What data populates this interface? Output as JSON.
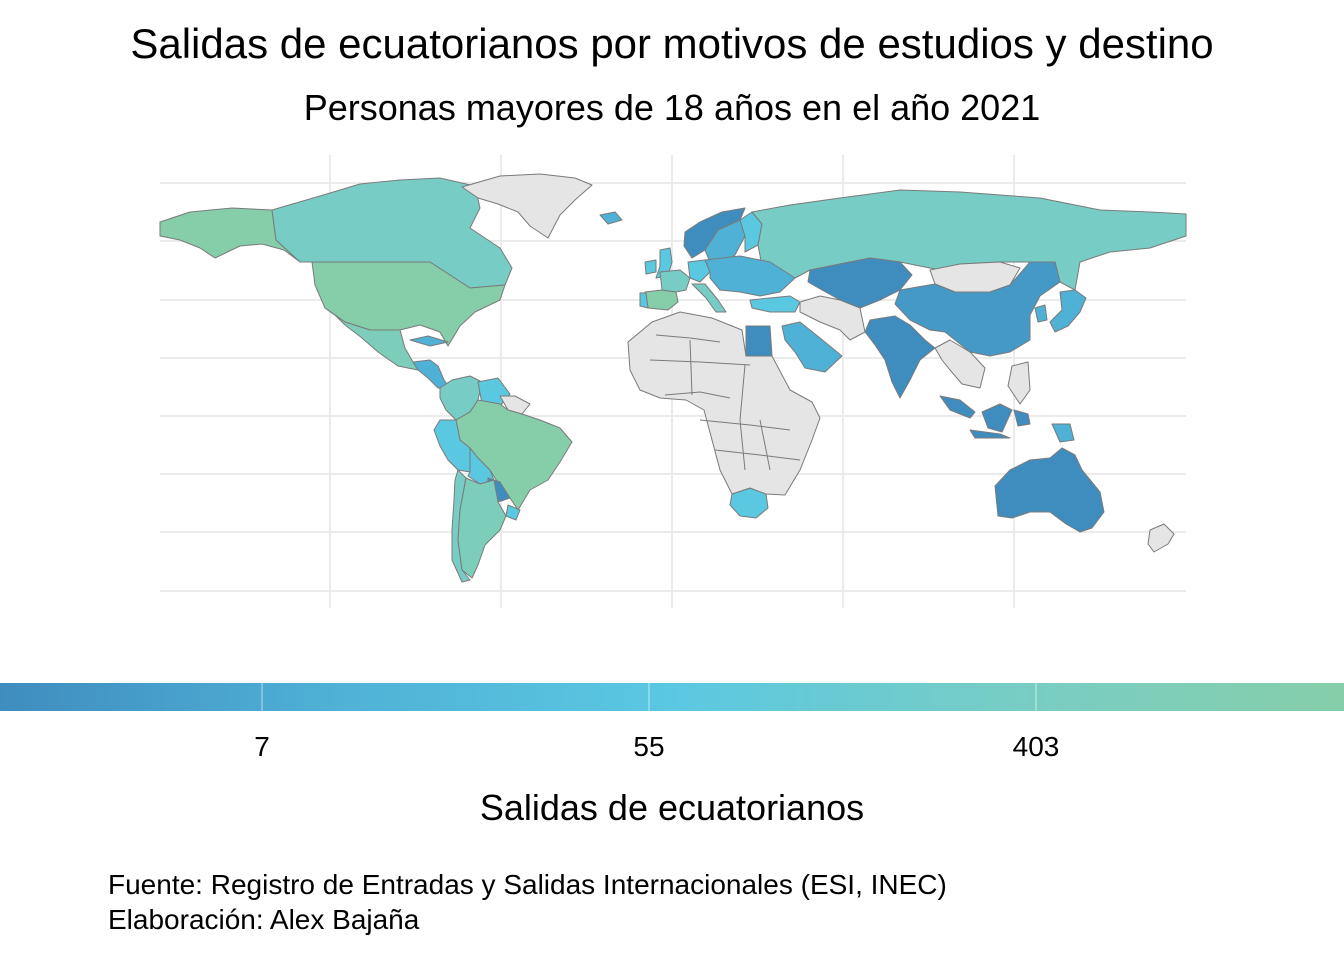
{
  "map": {
    "title": "Salidas de ecuatorianos por motivos de estudios y destino",
    "subtitle": "Personas mayores de 18 años en el año 2021",
    "legend": {
      "title": "Salidas de ecuatorianos",
      "scale": "log",
      "ticks": [
        "7",
        "55",
        "403"
      ],
      "gradient_colors": [
        "#3f8dbf",
        "#4fb1d6",
        "#5bc8e2",
        "#77cdc5",
        "#86ceaa"
      ],
      "no_data_color": "#e5e5e5",
      "border_color": "#7a7a7a",
      "grid_color": "#ebebeb"
    },
    "caption": {
      "source": "Fuente: Registro de Entradas y Salidas Internacionales (ESI, INEC)",
      "author": "Elaboración: Alex Bajaña"
    },
    "regions": [
      {
        "name": "Canada",
        "color": "#77cdc5"
      },
      {
        "name": "Alaska (USA)",
        "color": "#86ceaa"
      },
      {
        "name": "United States",
        "color": "#86ceaa"
      },
      {
        "name": "Mexico",
        "color": "#7dcdbb"
      },
      {
        "name": "Central America",
        "color": "#4fb1d6"
      },
      {
        "name": "Cuba",
        "color": "#4fb1d6"
      },
      {
        "name": "Greenland",
        "color": "#e5e5e5"
      },
      {
        "name": "Colombia",
        "color": "#77cdc5"
      },
      {
        "name": "Venezuela",
        "color": "#5bc8e2"
      },
      {
        "name": "Guyanas",
        "color": "#e5e5e5"
      },
      {
        "name": "Brazil",
        "color": "#86ceaa"
      },
      {
        "name": "Peru",
        "color": "#5bc8e2"
      },
      {
        "name": "Bolivia",
        "color": "#5bc8e2"
      },
      {
        "name": "Paraguay",
        "color": "#3f8dbf"
      },
      {
        "name": "Uruguay",
        "color": "#5bc8e2"
      },
      {
        "name": "Chile",
        "color": "#77cdc5"
      },
      {
        "name": "Argentina",
        "color": "#7dcdbb"
      },
      {
        "name": "Iceland",
        "color": "#4fb1d6"
      },
      {
        "name": "Norway",
        "color": "#3f8dbf"
      },
      {
        "name": "Sweden",
        "color": "#4fb1d6"
      },
      {
        "name": "Finland",
        "color": "#5bc8e2"
      },
      {
        "name": "Russia",
        "color": "#77cdc5"
      },
      {
        "name": "United Kingdom",
        "color": "#5bc8e2"
      },
      {
        "name": "Ireland",
        "color": "#5bc8e2"
      },
      {
        "name": "Spain",
        "color": "#86ceaa"
      },
      {
        "name": "Portugal",
        "color": "#5bc8e2"
      },
      {
        "name": "France",
        "color": "#77cdc5"
      },
      {
        "name": "Germany",
        "color": "#5bc8e2"
      },
      {
        "name": "Italy",
        "color": "#77cdc5"
      },
      {
        "name": "Eastern Europe",
        "color": "#4fb1d6"
      },
      {
        "name": "Turkey",
        "color": "#5bc8e2"
      },
      {
        "name": "Egypt",
        "color": "#3f8dbf"
      },
      {
        "name": "Saudi Arabia",
        "color": "#4fb1d6"
      },
      {
        "name": "Kazakhstan",
        "color": "#3f8dbf"
      },
      {
        "name": "Mongolia",
        "color": "#e5e5e5"
      },
      {
        "name": "China",
        "color": "#4599c7"
      },
      {
        "name": "India",
        "color": "#3f8dbf"
      },
      {
        "name": "Japan",
        "color": "#4fb1d6"
      },
      {
        "name": "South Korea",
        "color": "#4fb1d6"
      },
      {
        "name": "Indonesia",
        "color": "#3f8dbf"
      },
      {
        "name": "Philippines",
        "color": "#e5e5e5"
      },
      {
        "name": "Papua New Guinea",
        "color": "#4fb1d6"
      },
      {
        "name": "Australia",
        "color": "#3f8dbf"
      },
      {
        "name": "New Zealand",
        "color": "#e5e5e5"
      },
      {
        "name": "South Africa",
        "color": "#5bc8e2"
      },
      {
        "name": "Africa (sin datos)",
        "color": "#e5e5e5"
      },
      {
        "name": "Middle East (sin datos)",
        "color": "#e5e5e5"
      },
      {
        "name": "Southeast Asia (sin datos)",
        "color": "#e5e5e5"
      }
    ]
  }
}
